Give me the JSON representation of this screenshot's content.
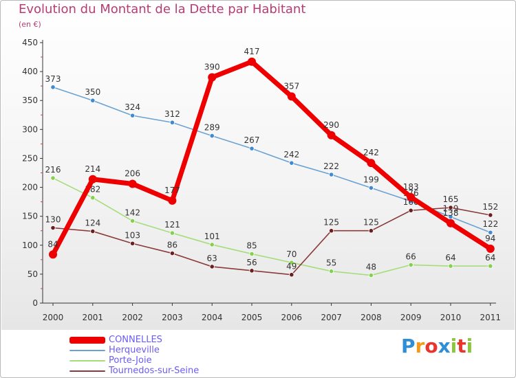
{
  "header": {
    "title": "Evolution du Montant de la Dette par Habitant",
    "subtitle": "(en €)"
  },
  "logo": {
    "letters": [
      "P",
      "r",
      "o",
      "x",
      "i",
      "t",
      "i"
    ],
    "colors": [
      "#2f8fd6",
      "#f29a1a",
      "#e8362f",
      "#2f8fd6",
      "#8cc63f",
      "#e8362f",
      "#8cc63f"
    ]
  },
  "chart_data": {
    "type": "line",
    "title": "Evolution du Montant de la Dette par Habitant",
    "subtitle": "(en €)",
    "xlabel": "",
    "ylabel": "",
    "x": [
      "2000",
      "2001",
      "2002",
      "2003",
      "2004",
      "2005",
      "2006",
      "2007",
      "2008",
      "2009",
      "2010",
      "2011"
    ],
    "ylim": [
      0,
      450
    ],
    "yticks": [
      0,
      50,
      100,
      150,
      200,
      250,
      300,
      350,
      400,
      450
    ],
    "grid": false,
    "legend_position": "bottom-left",
    "series": [
      {
        "name": "Herqueville",
        "color": "#6aa2d3",
        "marker_color": "#3f8ad0",
        "values": [
          373,
          350,
          324,
          312,
          289,
          267,
          242,
          222,
          199,
          176,
          149,
          122
        ],
        "labels": [
          "373",
          "350",
          "324",
          "312",
          "289",
          "267",
          "242",
          "222",
          "199",
          "176",
          "149",
          "122"
        ]
      },
      {
        "name": "Porte-Joie",
        "color": "#a5dd7a",
        "marker_color": "#86d050",
        "values": [
          216,
          182,
          142,
          121,
          101,
          85,
          70,
          55,
          48,
          66,
          64,
          64
        ],
        "labels": [
          "216",
          "182",
          "142",
          "121",
          "101",
          "85",
          "70",
          "55",
          "48",
          "66",
          "64",
          "64"
        ]
      },
      {
        "name": "Tournedos-sur-Seine",
        "color": "#8a3a3a",
        "marker_color": "#6d1f1f",
        "values": [
          130,
          124,
          103,
          86,
          63,
          56,
          49,
          125,
          125,
          160,
          165,
          152
        ],
        "labels": [
          "130",
          "124",
          "103",
          "86",
          "63",
          "56",
          "49",
          "125",
          "125",
          "160",
          "165",
          "152"
        ]
      },
      {
        "name": "CONNELLES",
        "color": "#ee0000",
        "marker_color": "#ee0000",
        "emphasized": true,
        "values": [
          84,
          214,
          206,
          177,
          390,
          417,
          357,
          290,
          242,
          183,
          138,
          94
        ],
        "labels": [
          "84",
          "214",
          "206",
          "177",
          "390",
          "417",
          "357",
          "290",
          "242",
          "183",
          "138",
          "94"
        ]
      }
    ],
    "legend": [
      {
        "name": "CONNELLES",
        "color": "#ee0000",
        "text_color": "#6b5cf2"
      },
      {
        "name": "Herqueville",
        "color": "#6aa2d3",
        "text_color": "#6b5cf2"
      },
      {
        "name": "Porte-Joie",
        "color": "#a5dd7a",
        "text_color": "#6b5cf2"
      },
      {
        "name": "Tournedos-sur-Seine",
        "color": "#8a3a3a",
        "text_color": "#6b5cf2"
      }
    ]
  }
}
